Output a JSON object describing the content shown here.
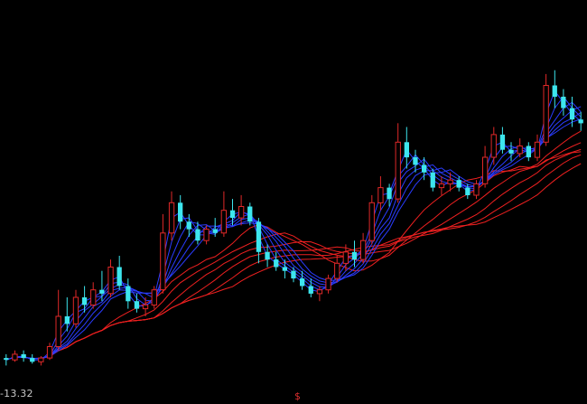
{
  "chart_data": {
    "type": "candlestick",
    "title": "",
    "xlabel": "",
    "ylabel": "",
    "price_low_label": "-13.32",
    "cursor_mark": "$",
    "ylim": [
      13,
      22
    ],
    "colors": {
      "background": "#000000",
      "up_candle": "#e02828",
      "down_candle": "#3de6ee",
      "short_ma": "#2a3cff",
      "long_ma": "#ee2020",
      "label": "#c8c8c8"
    },
    "candles": [
      [
        13.5,
        13.6,
        13.3,
        13.45
      ],
      [
        13.45,
        13.7,
        13.4,
        13.6
      ],
      [
        13.6,
        13.7,
        13.4,
        13.5
      ],
      [
        13.5,
        13.6,
        13.35,
        13.4
      ],
      [
        13.4,
        13.55,
        13.3,
        13.5
      ],
      [
        13.5,
        13.9,
        13.45,
        13.8
      ],
      [
        13.8,
        15.3,
        13.7,
        14.6
      ],
      [
        14.6,
        15.1,
        14.2,
        14.4
      ],
      [
        14.4,
        15.3,
        14.3,
        15.1
      ],
      [
        15.1,
        15.4,
        14.7,
        14.9
      ],
      [
        14.9,
        15.5,
        14.8,
        15.3
      ],
      [
        15.3,
        15.8,
        15.0,
        15.2
      ],
      [
        15.2,
        16.1,
        15.1,
        15.9
      ],
      [
        15.9,
        16.2,
        15.3,
        15.4
      ],
      [
        15.4,
        15.6,
        14.8,
        15.0
      ],
      [
        15.0,
        15.2,
        14.7,
        14.8
      ],
      [
        14.8,
        15.1,
        14.6,
        14.9
      ],
      [
        14.9,
        15.4,
        14.8,
        15.3
      ],
      [
        15.3,
        17.3,
        15.2,
        16.8
      ],
      [
        16.8,
        17.9,
        16.6,
        17.6
      ],
      [
        17.6,
        17.8,
        16.9,
        17.1
      ],
      [
        17.1,
        17.3,
        16.7,
        16.9
      ],
      [
        16.9,
        17.1,
        16.5,
        16.6
      ],
      [
        16.6,
        17.0,
        16.5,
        16.9
      ],
      [
        16.9,
        17.2,
        16.7,
        16.8
      ],
      [
        16.8,
        17.9,
        16.7,
        17.4
      ],
      [
        17.4,
        17.7,
        17.0,
        17.2
      ],
      [
        17.2,
        17.8,
        17.0,
        17.5
      ],
      [
        17.5,
        17.6,
        17.0,
        17.1
      ],
      [
        17.1,
        17.2,
        16.0,
        16.3
      ],
      [
        16.3,
        16.5,
        15.9,
        16.1
      ],
      [
        16.1,
        16.3,
        15.8,
        15.9
      ],
      [
        15.9,
        16.1,
        15.6,
        15.8
      ],
      [
        15.8,
        15.9,
        15.5,
        15.6
      ],
      [
        15.6,
        15.8,
        15.3,
        15.4
      ],
      [
        15.4,
        15.6,
        15.1,
        15.2
      ],
      [
        15.2,
        15.4,
        15.0,
        15.3
      ],
      [
        15.3,
        15.7,
        15.2,
        15.6
      ],
      [
        15.6,
        16.2,
        15.5,
        16.0
      ],
      [
        16.0,
        16.5,
        15.8,
        16.3
      ],
      [
        16.3,
        16.6,
        15.9,
        16.1
      ],
      [
        16.1,
        16.8,
        16.0,
        16.6
      ],
      [
        16.6,
        17.8,
        16.5,
        17.6
      ],
      [
        17.6,
        18.3,
        17.4,
        18.0
      ],
      [
        18.0,
        18.1,
        17.5,
        17.7
      ],
      [
        17.7,
        19.7,
        17.6,
        19.2
      ],
      [
        19.2,
        19.6,
        18.5,
        18.8
      ],
      [
        18.8,
        19.0,
        18.4,
        18.6
      ],
      [
        18.6,
        18.8,
        18.2,
        18.4
      ],
      [
        18.4,
        18.5,
        17.9,
        18.0
      ],
      [
        18.0,
        18.3,
        17.8,
        18.1
      ],
      [
        18.1,
        18.4,
        17.9,
        18.2
      ],
      [
        18.2,
        18.3,
        17.9,
        18.0
      ],
      [
        18.0,
        18.1,
        17.7,
        17.8
      ],
      [
        17.8,
        18.2,
        17.7,
        18.1
      ],
      [
        18.1,
        19.1,
        18.0,
        18.8
      ],
      [
        18.8,
        19.6,
        18.6,
        19.4
      ],
      [
        19.4,
        19.6,
        18.9,
        19.0
      ],
      [
        19.0,
        19.2,
        18.7,
        18.9
      ],
      [
        18.9,
        19.3,
        18.8,
        19.1
      ],
      [
        19.1,
        19.2,
        18.7,
        18.8
      ],
      [
        18.8,
        19.4,
        18.7,
        19.2
      ],
      [
        19.2,
        21.0,
        19.1,
        20.7
      ],
      [
        20.7,
        21.1,
        20.1,
        20.4
      ],
      [
        20.4,
        20.6,
        19.9,
        20.1
      ],
      [
        20.1,
        20.4,
        19.6,
        19.8
      ],
      [
        19.8,
        20.0,
        19.5,
        19.7
      ]
    ]
  }
}
